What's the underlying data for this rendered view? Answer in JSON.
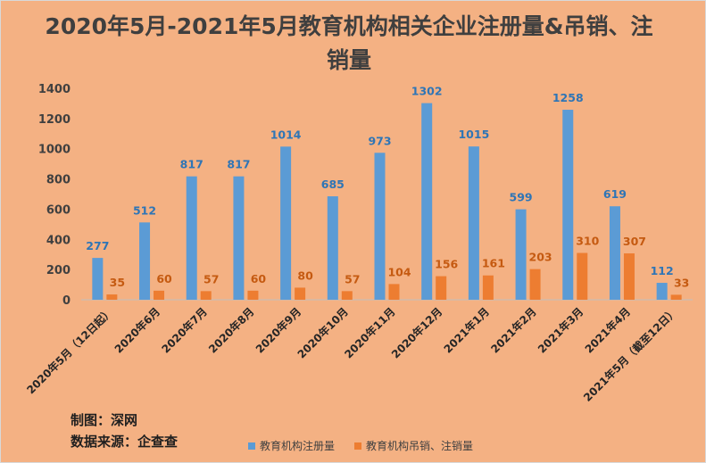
{
  "chart_data": {
    "type": "bar",
    "title": "2020年5月-2021年5月教育机构相关企业注册量&吊销、注销量",
    "categories": [
      "2020年5月（12日起）",
      "2020年6月",
      "2020年7月",
      "2020年8月",
      "2020年9月",
      "2020年10月",
      "2020年11月",
      "2020年12月",
      "2021年1月",
      "2021年2月",
      "2021年3月",
      "2021年4月",
      "2021年5月（截至12日）"
    ],
    "series": [
      {
        "name": "教育机构注册量",
        "color": "#5b9bd5",
        "values": [
          277,
          512,
          817,
          817,
          1014,
          685,
          973,
          1302,
          1015,
          599,
          1258,
          619,
          112
        ]
      },
      {
        "name": "教育机构吊销、注销量",
        "color": "#ed7d31",
        "values": [
          35,
          60,
          57,
          60,
          80,
          57,
          104,
          156,
          161,
          203,
          310,
          307,
          33
        ]
      }
    ],
    "ylim": [
      0,
      1400
    ],
    "yticks": [
      0,
      200,
      400,
      600,
      800,
      1000,
      1200,
      1400
    ],
    "grid": false,
    "legend": "bottom",
    "xlabel": "",
    "ylabel": ""
  },
  "credits": {
    "producer": "制图：深网",
    "source": "数据来源：企查查"
  }
}
